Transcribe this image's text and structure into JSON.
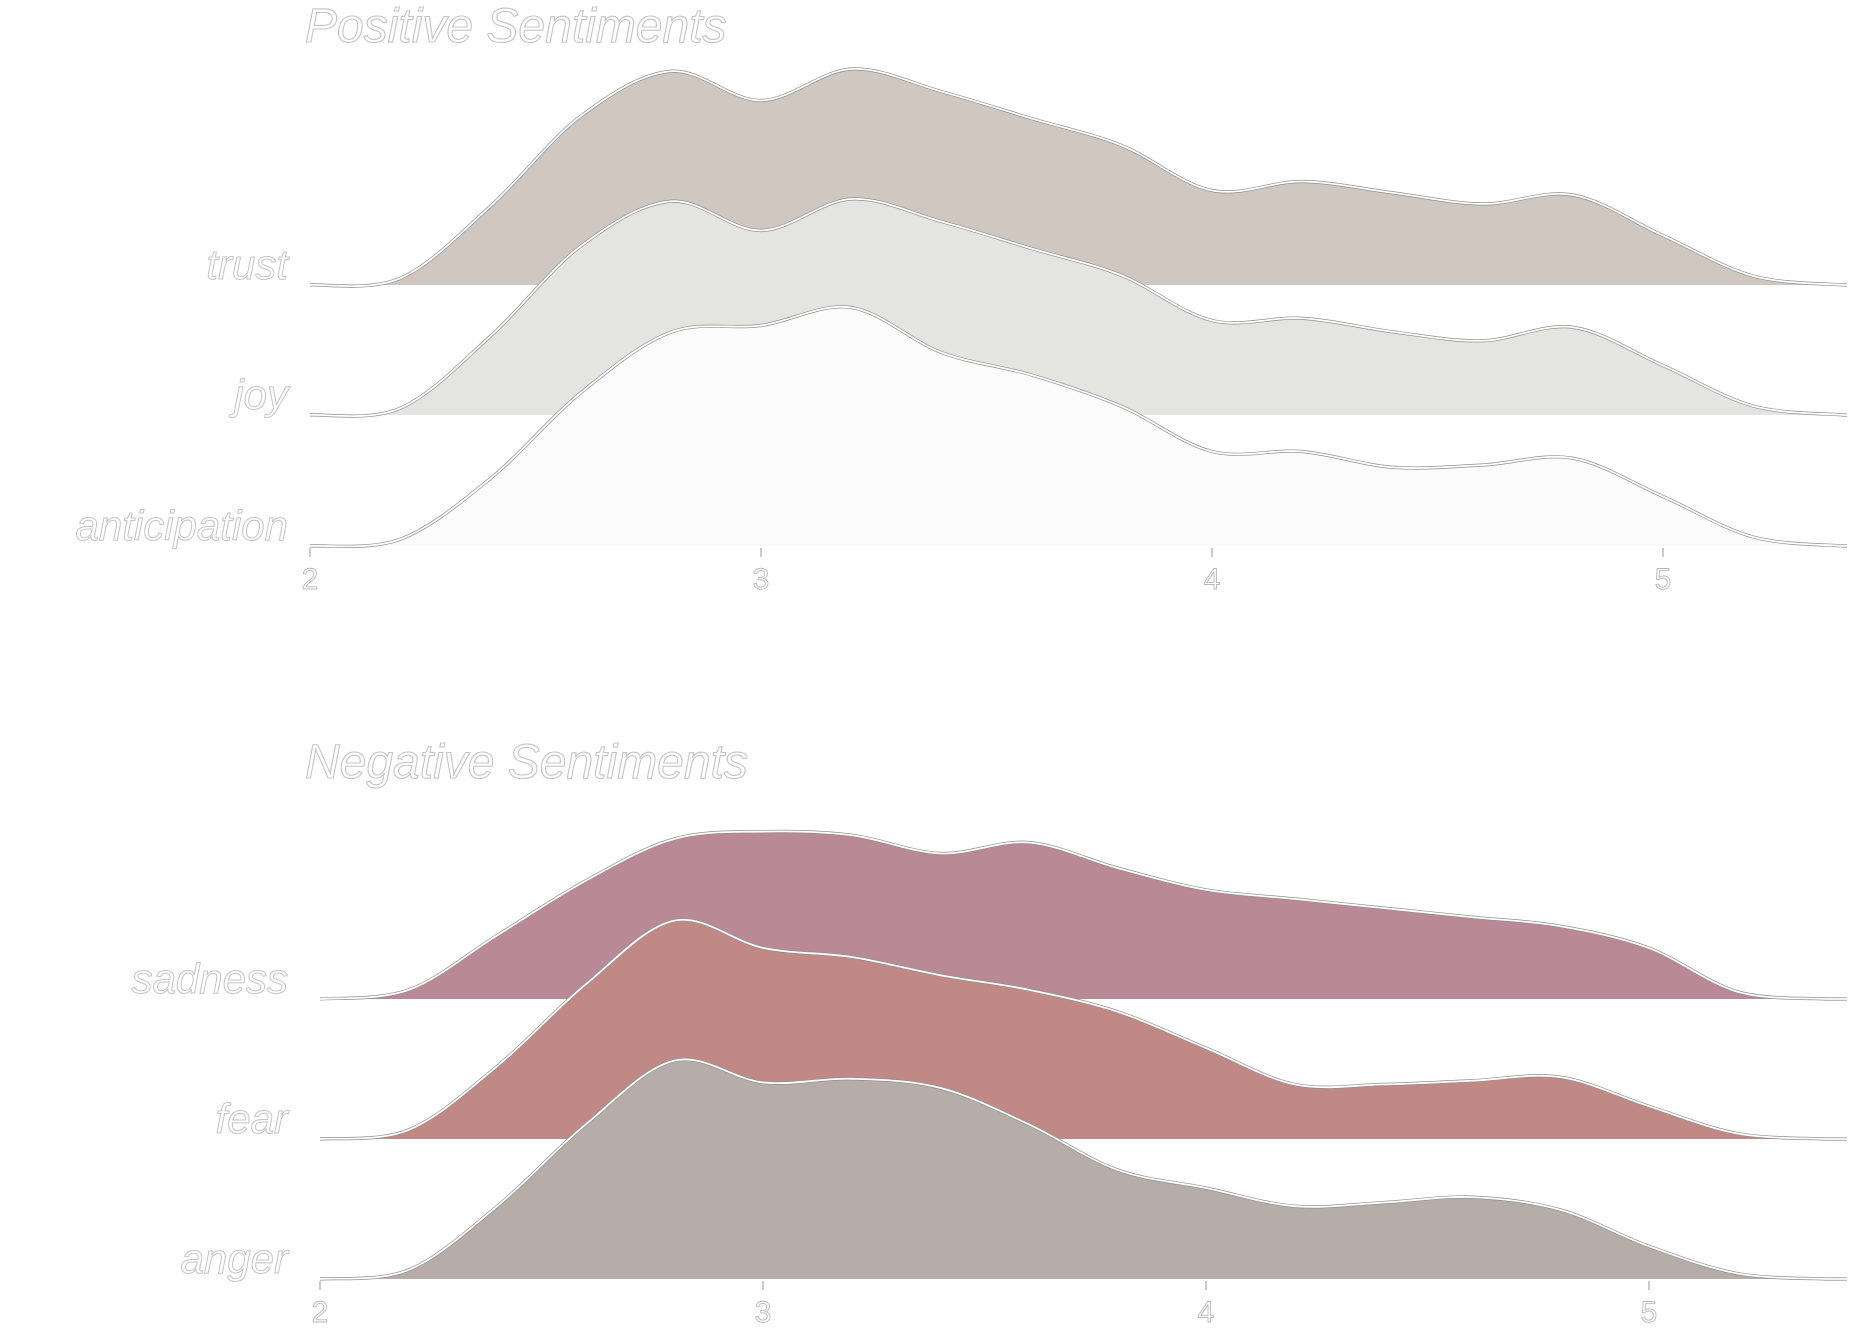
{
  "chart_data": [
    {
      "type": "area",
      "subtype": "ridgeline",
      "title": "Positive Sentiments",
      "xlabel": "",
      "ylabel": "",
      "xlim": [
        2,
        5.4
      ],
      "xticks": [
        "2",
        "3",
        "4",
        "5"
      ],
      "grid": false,
      "series": [
        {
          "name": "trust",
          "color": "#d0c8c0",
          "x": [
            2.0,
            2.2,
            2.4,
            2.6,
            2.8,
            3.0,
            3.2,
            3.4,
            3.6,
            3.8,
            4.0,
            4.2,
            4.4,
            4.6,
            4.8,
            5.0,
            5.2,
            5.4
          ],
          "y": [
            0.0,
            0.03,
            0.35,
            0.75,
            0.95,
            0.82,
            0.96,
            0.86,
            0.74,
            0.62,
            0.42,
            0.46,
            0.41,
            0.36,
            0.4,
            0.22,
            0.04,
            0.0
          ]
        },
        {
          "name": "joy",
          "color": "#e4e4e0",
          "x": [
            2.0,
            2.2,
            2.4,
            2.6,
            2.8,
            3.0,
            3.2,
            3.4,
            3.6,
            3.8,
            4.0,
            4.2,
            4.4,
            4.6,
            4.8,
            5.0,
            5.2,
            5.4
          ],
          "y": [
            0.0,
            0.03,
            0.35,
            0.75,
            0.95,
            0.82,
            0.96,
            0.86,
            0.74,
            0.62,
            0.42,
            0.43,
            0.37,
            0.33,
            0.39,
            0.22,
            0.04,
            0.0
          ]
        },
        {
          "name": "anticipation",
          "color": "#fbfbfb",
          "x": [
            2.0,
            2.2,
            2.4,
            2.6,
            2.8,
            3.0,
            3.2,
            3.4,
            3.6,
            3.8,
            4.0,
            4.2,
            4.4,
            4.6,
            4.8,
            5.0,
            5.2,
            5.4
          ],
          "y": [
            0.0,
            0.03,
            0.3,
            0.68,
            0.95,
            0.98,
            1.06,
            0.86,
            0.76,
            0.62,
            0.42,
            0.42,
            0.35,
            0.36,
            0.39,
            0.22,
            0.04,
            0.0
          ]
        }
      ]
    },
    {
      "type": "area",
      "subtype": "ridgeline",
      "title": "Negative Sentiments",
      "xlabel": "",
      "ylabel": "",
      "xlim": [
        2,
        5.4
      ],
      "xticks": [
        "2",
        "3",
        "4",
        "5"
      ],
      "grid": false,
      "series": [
        {
          "name": "sadness",
          "color": "#b98995",
          "x": [
            2.0,
            2.2,
            2.4,
            2.6,
            2.8,
            3.0,
            3.2,
            3.4,
            3.6,
            3.8,
            4.0,
            4.2,
            4.4,
            4.6,
            4.8,
            5.0,
            5.2,
            5.4
          ],
          "y": [
            0.0,
            0.05,
            0.35,
            0.65,
            0.88,
            0.92,
            0.9,
            0.8,
            0.86,
            0.72,
            0.6,
            0.55,
            0.5,
            0.45,
            0.4,
            0.28,
            0.04,
            0.0
          ]
        },
        {
          "name": "fear",
          "color": "#c08985",
          "x": [
            2.0,
            2.2,
            2.4,
            2.6,
            2.8,
            3.0,
            3.2,
            3.4,
            3.6,
            3.8,
            4.0,
            4.2,
            4.4,
            4.6,
            4.8,
            5.0,
            5.2,
            5.4
          ],
          "y": [
            0.0,
            0.05,
            0.4,
            0.85,
            1.2,
            1.05,
            1.0,
            0.9,
            0.82,
            0.7,
            0.5,
            0.3,
            0.3,
            0.32,
            0.34,
            0.18,
            0.03,
            0.0
          ]
        },
        {
          "name": "anger",
          "color": "#b6ada8",
          "x": [
            2.0,
            2.2,
            2.4,
            2.6,
            2.8,
            3.0,
            3.2,
            3.4,
            3.6,
            3.8,
            4.0,
            4.2,
            4.4,
            4.6,
            4.8,
            5.0,
            5.2,
            5.4
          ],
          "y": [
            0.0,
            0.05,
            0.4,
            0.85,
            1.2,
            1.08,
            1.1,
            1.05,
            0.85,
            0.6,
            0.5,
            0.4,
            0.42,
            0.45,
            0.38,
            0.18,
            0.03,
            0.0
          ]
        }
      ]
    }
  ]
}
